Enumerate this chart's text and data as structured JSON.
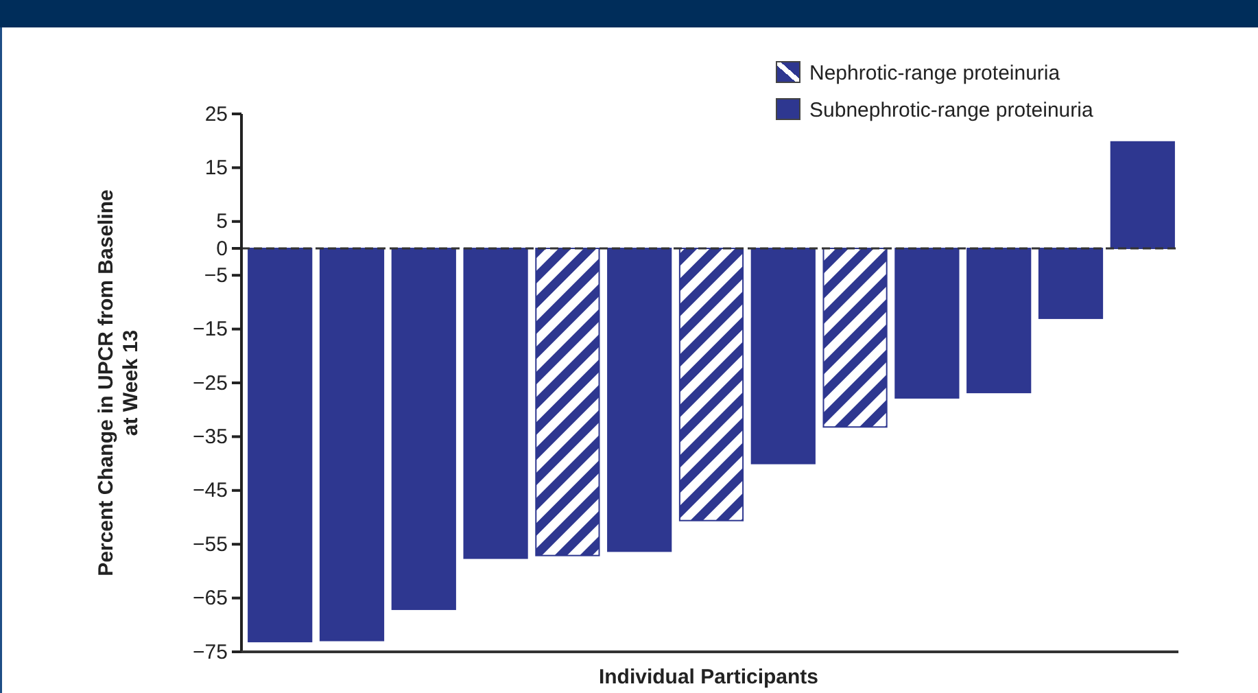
{
  "chart_data": {
    "type": "bar",
    "ylabel": "Percent Change in UPCR from Baseline\nat Week 13",
    "xlabel": "Individual Participants",
    "categories": [
      null,
      null,
      null,
      null,
      null,
      null,
      null,
      null,
      null,
      null,
      null,
      null,
      null
    ],
    "series": [
      {
        "name": "Nephrotic-range proteinuria",
        "color": "#2e3790",
        "values": [
          null,
          null,
          null,
          null,
          -57.1,
          null,
          -50.6,
          null,
          -33.2,
          null,
          null,
          null,
          null
        ]
      },
      {
        "name": "Subnephrotic-range proteinuria",
        "color": "#2e3790",
        "values": [
          -73.1,
          -72.9,
          -67.1,
          -57.6,
          null,
          -56.3,
          null,
          -40.0,
          null,
          -27.8,
          -26.8,
          -13.0,
          19.8
        ]
      }
    ],
    "ylim": [
      -75,
      25
    ],
    "yticks": [
      -75,
      -65,
      -55,
      -45,
      -35,
      -25,
      -15,
      -5,
      0,
      5,
      15,
      25
    ],
    "ref_lines": [
      {
        "axis": "y",
        "value": 0,
        "line_style": "dashed",
        "color": "#333333"
      }
    ],
    "tick_labels": "y",
    "legend": "top right",
    "grid": false
  }
}
